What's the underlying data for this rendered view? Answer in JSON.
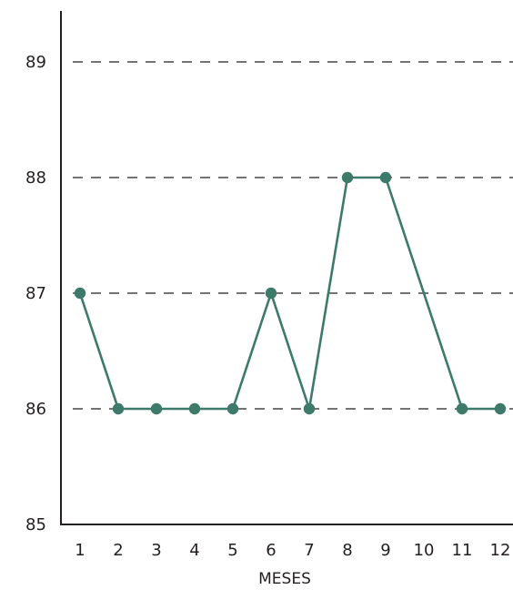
{
  "chart_data": {
    "type": "line",
    "title": "",
    "xlabel": "MESES",
    "ylabel": "",
    "categories": [
      "1",
      "2",
      "3",
      "4",
      "5",
      "6",
      "7",
      "8",
      "9",
      "10",
      "11",
      "12"
    ],
    "x": [
      1,
      2,
      3,
      4,
      5,
      6,
      7,
      8,
      9,
      11,
      12
    ],
    "series": [
      {
        "values": [
          87,
          86,
          86,
          86,
          86,
          87,
          86,
          88,
          88,
          86,
          86
        ]
      }
    ],
    "ylim": [
      85,
      89
    ],
    "yticks": [
      "85",
      "86",
      "87",
      "88",
      "89"
    ],
    "grid": "dashed horizontal at y ticks 86-89",
    "line_color": "#3d7a6a",
    "marker_color": "#3d7a6a",
    "axis_color": "#231f20"
  }
}
